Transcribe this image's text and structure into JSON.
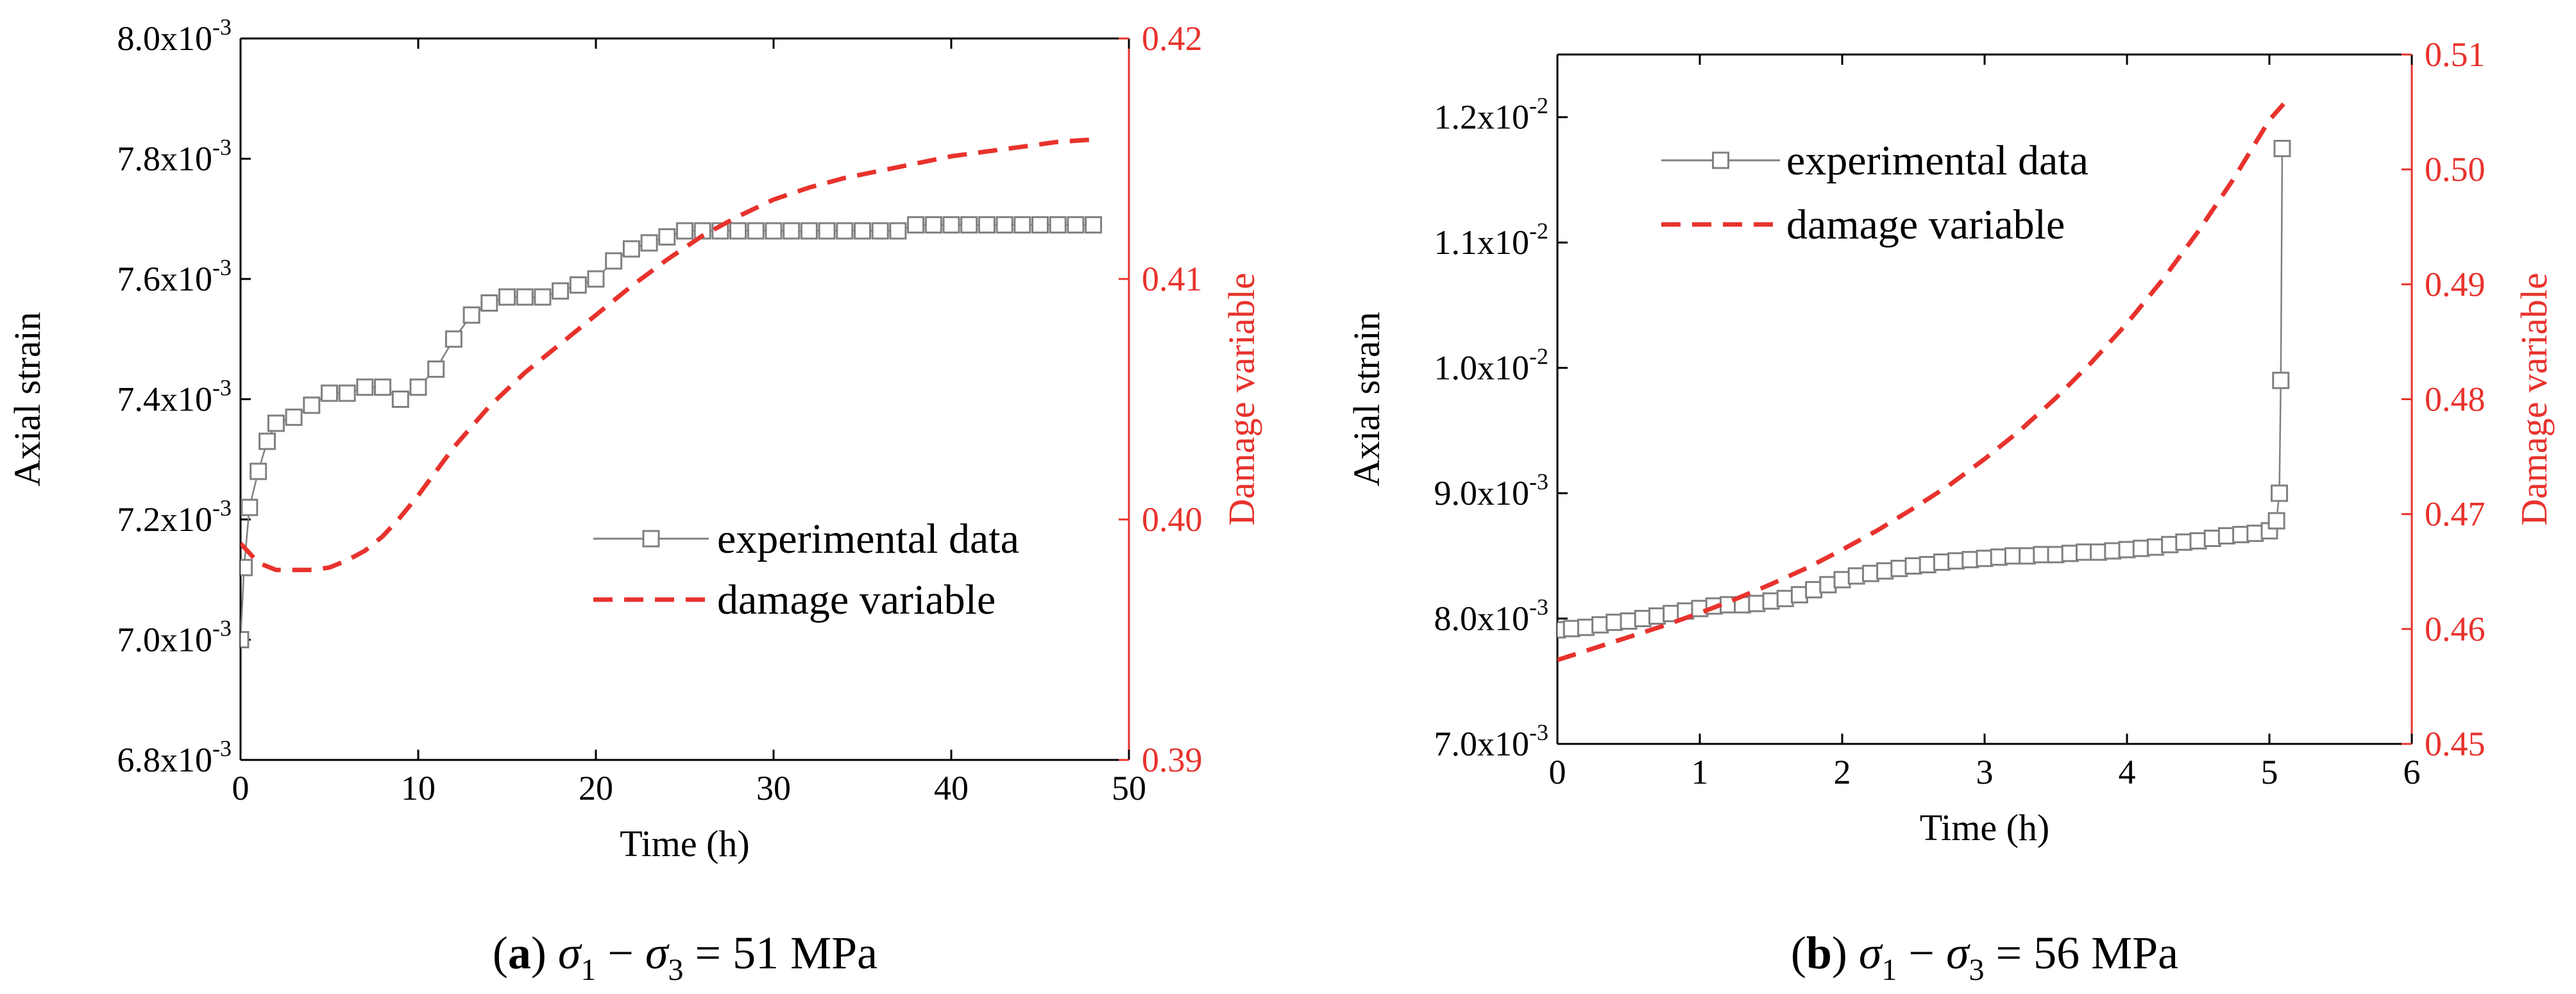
{
  "chart_data": [
    {
      "id": "a",
      "type": "line",
      "caption": {
        "label": "a",
        "math": "σ1 − σ3 = 51 MPa",
        "sym": "σ",
        "sub1": "1",
        "sub3": "3",
        "minus": "−",
        "eq": "=",
        "value": "51 MPa"
      },
      "xlabel": "Time (h)",
      "ylabel": "Axial strain",
      "y2label": "Damage variable",
      "xlim": [
        0,
        50
      ],
      "ylim": [
        0.0068,
        0.008
      ],
      "y2lim": [
        0.39,
        0.42
      ],
      "x_ticks": [
        "0",
        "10",
        "20",
        "30",
        "40",
        "50"
      ],
      "x_tick_values": [
        0,
        10,
        20,
        30,
        40,
        50
      ],
      "y_ticks": [
        {
          "value": 0.0068,
          "mant": "6.8x10",
          "exp": "-3"
        },
        {
          "value": 0.007,
          "mant": "7.0x10",
          "exp": "-3"
        },
        {
          "value": 0.0072,
          "mant": "7.2x10",
          "exp": "-3"
        },
        {
          "value": 0.0074,
          "mant": "7.4x10",
          "exp": "-3"
        },
        {
          "value": 0.0076,
          "mant": "7.6x10",
          "exp": "-3"
        },
        {
          "value": 0.0078,
          "mant": "7.8x10",
          "exp": "-3"
        },
        {
          "value": 0.008,
          "mant": "8.0x10",
          "exp": "-3"
        }
      ],
      "y2_ticks": [
        "0.39",
        "0.40",
        "0.41",
        "0.42"
      ],
      "y2_tick_values": [
        0.39,
        0.4,
        0.41,
        0.42
      ],
      "legend": {
        "placement": "bottom-right",
        "entries": [
          "experimental data",
          "damage variable"
        ]
      },
      "series": [
        {
          "name": "experimental data",
          "axis": "left",
          "color": "#808080",
          "marker": "open-square",
          "x": [
            0,
            0.2,
            0.5,
            1.0,
            1.5,
            2.0,
            3.0,
            4.0,
            5.0,
            6.0,
            7.0,
            8.0,
            9.0,
            10.0,
            11.0,
            12.0,
            13.0,
            14.0,
            15.0,
            16.0,
            17.0,
            18.0,
            19.0,
            20.0,
            21.0,
            22.0,
            23.0,
            24.0,
            25.0,
            26.0,
            27.0,
            28.0,
            29.0,
            30.0,
            31.0,
            32.0,
            33.0,
            34.0,
            35.0,
            36.0,
            37.0,
            38.0,
            39.0,
            40.0,
            41.0,
            42.0,
            43.0,
            44.0,
            45.0,
            46.0,
            47.0,
            48.0
          ],
          "y": [
            0.007,
            0.00712,
            0.00722,
            0.00728,
            0.00733,
            0.00736,
            0.00737,
            0.00739,
            0.00741,
            0.00741,
            0.00742,
            0.00742,
            0.0074,
            0.00742,
            0.00745,
            0.0075,
            0.00754,
            0.00756,
            0.00757,
            0.00757,
            0.00757,
            0.00758,
            0.00759,
            0.0076,
            0.00763,
            0.00765,
            0.00766,
            0.00767,
            0.00768,
            0.00768,
            0.00768,
            0.00768,
            0.00768,
            0.00768,
            0.00768,
            0.00768,
            0.00768,
            0.00768,
            0.00768,
            0.00768,
            0.00768,
            0.00769,
            0.00769,
            0.00769,
            0.00769,
            0.00769,
            0.00769,
            0.00769,
            0.00769,
            0.00769,
            0.00769,
            0.00769
          ]
        },
        {
          "name": "damage variable",
          "axis": "right",
          "color": "#e8322c",
          "style": "dashed",
          "x": [
            0,
            1,
            2,
            3,
            4,
            5,
            6,
            7,
            8,
            9,
            10,
            12,
            14,
            16,
            18,
            20,
            22,
            24,
            26,
            28,
            30,
            32,
            34,
            36,
            38,
            40,
            42,
            44,
            46,
            48
          ],
          "y": [
            0.399,
            0.3982,
            0.3979,
            0.3979,
            0.3979,
            0.398,
            0.3983,
            0.3987,
            0.3993,
            0.4001,
            0.401,
            0.403,
            0.4047,
            0.4061,
            0.4073,
            0.4085,
            0.4097,
            0.4108,
            0.4118,
            0.4126,
            0.4133,
            0.4138,
            0.4142,
            0.4145,
            0.4148,
            0.4151,
            0.4153,
            0.4155,
            0.4157,
            0.4158
          ]
        }
      ]
    },
    {
      "id": "b",
      "type": "line",
      "caption": {
        "label": "b",
        "math": "σ1 − σ3 = 56 MPa",
        "sym": "σ",
        "sub1": "1",
        "sub3": "3",
        "minus": "−",
        "eq": "=",
        "value": "56 MPa"
      },
      "xlabel": "Time (h)",
      "ylabel": "Axial strain",
      "y2label": "Damage variable",
      "xlim": [
        0,
        6
      ],
      "ylim": [
        0.007,
        0.0125
      ],
      "y2lim": [
        0.45,
        0.51
      ],
      "x_ticks": [
        "0",
        "1",
        "2",
        "3",
        "4",
        "5",
        "6"
      ],
      "x_tick_values": [
        0,
        1,
        2,
        3,
        4,
        5,
        6
      ],
      "y_ticks": [
        {
          "value": 0.007,
          "mant": "7.0x10",
          "exp": "-3"
        },
        {
          "value": 0.008,
          "mant": "8.0x10",
          "exp": "-3"
        },
        {
          "value": 0.009,
          "mant": "9.0x10",
          "exp": "-3"
        },
        {
          "value": 0.01,
          "mant": "1.0x10",
          "exp": "-2"
        },
        {
          "value": 0.011,
          "mant": "1.1x10",
          "exp": "-2"
        },
        {
          "value": 0.012,
          "mant": "1.2x10",
          "exp": "-2"
        }
      ],
      "y2_ticks": [
        "0.45",
        "0.46",
        "0.47",
        "0.48",
        "0.49",
        "0.50",
        "0.51"
      ],
      "y2_tick_values": [
        0.45,
        0.46,
        0.47,
        0.48,
        0.49,
        0.5,
        0.51
      ],
      "legend": {
        "placement": "top-left",
        "entries": [
          "experimental data",
          "damage variable"
        ]
      },
      "series": [
        {
          "name": "experimental data",
          "axis": "left",
          "color": "#808080",
          "marker": "open-square",
          "x": [
            0,
            0.1,
            0.2,
            0.3,
            0.4,
            0.5,
            0.6,
            0.7,
            0.8,
            0.9,
            1.0,
            1.1,
            1.2,
            1.3,
            1.4,
            1.5,
            1.6,
            1.7,
            1.8,
            1.9,
            2.0,
            2.1,
            2.2,
            2.3,
            2.4,
            2.5,
            2.6,
            2.7,
            2.8,
            2.9,
            3.0,
            3.1,
            3.2,
            3.3,
            3.4,
            3.5,
            3.6,
            3.7,
            3.8,
            3.9,
            4.0,
            4.1,
            4.2,
            4.3,
            4.4,
            4.5,
            4.6,
            4.7,
            4.8,
            4.9,
            5.0,
            5.05,
            5.07,
            5.08,
            5.09
          ],
          "y": [
            0.00791,
            0.00792,
            0.00793,
            0.00795,
            0.00797,
            0.00798,
            0.008,
            0.00802,
            0.00804,
            0.00806,
            0.00808,
            0.0081,
            0.00811,
            0.00811,
            0.00812,
            0.00814,
            0.00816,
            0.00819,
            0.00823,
            0.00827,
            0.00831,
            0.00834,
            0.00836,
            0.00838,
            0.0084,
            0.00842,
            0.00843,
            0.00845,
            0.00846,
            0.00847,
            0.00848,
            0.00849,
            0.0085,
            0.0085,
            0.00851,
            0.00851,
            0.00852,
            0.00853,
            0.00853,
            0.00854,
            0.00855,
            0.00856,
            0.00857,
            0.00859,
            0.00861,
            0.00862,
            0.00864,
            0.00866,
            0.00867,
            0.00868,
            0.0087,
            0.00878,
            0.009,
            0.0099,
            0.01175
          ]
        },
        {
          "name": "damage variable",
          "axis": "right",
          "color": "#e8322c",
          "style": "dashed",
          "x": [
            0,
            0.25,
            0.5,
            0.75,
            1.0,
            1.25,
            1.5,
            1.75,
            2.0,
            2.25,
            2.5,
            2.75,
            3.0,
            3.25,
            3.5,
            3.75,
            4.0,
            4.25,
            4.5,
            4.75,
            5.0,
            5.1
          ],
          "y": [
            0.4573,
            0.4583,
            0.4593,
            0.4603,
            0.4614,
            0.4626,
            0.4639,
            0.4653,
            0.4669,
            0.4686,
            0.4705,
            0.4725,
            0.4748,
            0.4773,
            0.4801,
            0.4832,
            0.4866,
            0.4904,
            0.4946,
            0.4992,
            0.5043,
            0.5057
          ]
        }
      ]
    }
  ]
}
